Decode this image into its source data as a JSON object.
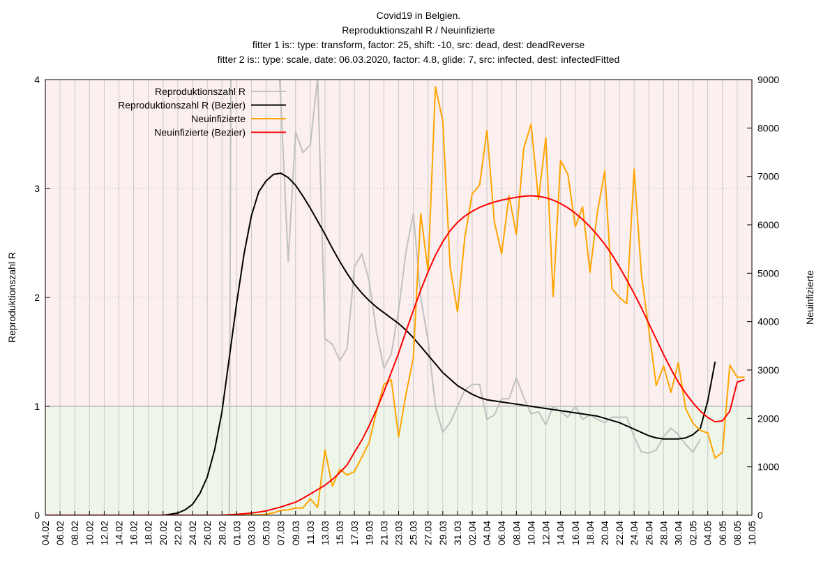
{
  "chart_data": {
    "type": "line",
    "title": [
      "Covid19 in Belgien.",
      "Reproduktionszahl R / Neuinfizierte",
      "fitter 1 is:: type: transform, factor: 25, shift: -10, src: dead, dest: deadReverse",
      "fitter 2 is:: type: scale, date: 06.03.2020, factor: 4.8, glide: 7, src: infected, dest: infectedFitted"
    ],
    "ylabel": "Reproduktionszahl R",
    "y2label": "Neuinfizierte",
    "categories": [
      "04.02",
      null,
      "06.02",
      null,
      "08.02",
      null,
      "10.02",
      null,
      "12.02",
      null,
      "14.02",
      null,
      "16.02",
      null,
      "18.02",
      null,
      "20.02",
      null,
      "22.02",
      null,
      "24.02",
      null,
      "26.02",
      null,
      "28.02",
      null,
      "01.03",
      null,
      "03.03",
      null,
      "05.03",
      null,
      "07.03",
      null,
      "09.03",
      null,
      "11.03",
      null,
      "13.03",
      null,
      "15.03",
      null,
      "17.03",
      null,
      "19.03",
      null,
      "21.03",
      null,
      "23.03",
      null,
      "25.03",
      null,
      "27.03",
      null,
      "29.03",
      null,
      "31.03",
      null,
      "02.04",
      null,
      "04.04",
      null,
      "06.04",
      null,
      "08.04",
      null,
      "10.04",
      null,
      "12.04",
      null,
      "14.04",
      null,
      "16.04",
      null,
      "18.04",
      null,
      "20.04",
      null,
      "22.04",
      null,
      "24.04",
      null,
      "26.04",
      null,
      "28.04",
      null,
      "30.04",
      null,
      "02.05",
      null,
      "04.05",
      null,
      "06.05",
      null,
      "08.05",
      null,
      "10.05"
    ],
    "ylim": [
      0,
      4
    ],
    "yticks": [
      0,
      1,
      2,
      3,
      4
    ],
    "y2lim": [
      0,
      9000
    ],
    "y2ticks": [
      0,
      1000,
      2000,
      3000,
      4000,
      5000,
      6000,
      7000,
      8000,
      9000
    ],
    "grid": true,
    "legend": "upper left",
    "zones": [
      {
        "ylim": [
          0,
          1
        ],
        "color": "#eef6ea"
      },
      {
        "ylim": [
          1,
          4
        ],
        "color": "#fcefef"
      }
    ],
    "series": [
      {
        "name": "Reproduktionszahl R",
        "color": "#c0c0c0",
        "values": [
          null,
          null,
          null,
          null,
          null,
          null,
          null,
          null,
          null,
          null,
          null,
          null,
          null,
          null,
          null,
          null,
          null,
          null,
          null,
          null,
          null,
          null,
          null,
          null,
          null,
          0,
          20,
          15,
          10,
          8,
          6,
          5,
          3.8,
          2.33,
          3.52,
          3.33,
          3.4,
          4.02,
          1.62,
          1.57,
          1.42,
          1.53,
          2.28,
          2.4,
          2.15,
          1.68,
          1.35,
          1.48,
          1.88,
          2.42,
          2.77,
          2.0,
          1.6,
          1.0,
          0.76,
          0.85,
          1.0,
          1.15,
          1.2,
          1.2,
          0.88,
          0.92,
          1.07,
          1.07,
          1.26,
          1.08,
          0.93,
          0.95,
          0.83,
          1.0,
          0.95,
          0.9,
          1.0,
          0.88,
          0.92,
          0.88,
          0.85,
          0.9,
          0.9,
          0.9,
          0.72,
          0.58,
          0.57,
          0.6,
          0.72,
          0.8,
          0.74,
          0.65,
          0.58,
          0.7,
          null,
          null,
          null,
          null,
          null,
          null,
          null
        ]
      },
      {
        "name": "Reproduktionszahl R (Bezier)",
        "color": "#000000",
        "values": [
          0,
          0,
          0,
          0,
          0,
          0,
          0,
          0,
          0,
          0,
          0,
          0,
          0,
          0,
          0,
          0,
          0,
          0.01,
          0.02,
          0.05,
          0.1,
          0.2,
          0.35,
          0.6,
          0.95,
          1.45,
          1.95,
          2.4,
          2.75,
          2.97,
          3.07,
          3.13,
          3.14,
          3.1,
          3.03,
          2.93,
          2.82,
          2.7,
          2.58,
          2.45,
          2.33,
          2.22,
          2.12,
          2.04,
          1.97,
          1.91,
          1.86,
          1.81,
          1.76,
          1.7,
          1.63,
          1.55,
          1.47,
          1.39,
          1.31,
          1.25,
          1.19,
          1.15,
          1.11,
          1.08,
          1.06,
          1.05,
          1.04,
          1.03,
          1.02,
          1.01,
          1.0,
          0.99,
          0.98,
          0.97,
          0.96,
          0.95,
          0.94,
          0.93,
          0.92,
          0.91,
          0.89,
          0.87,
          0.85,
          0.82,
          0.79,
          0.76,
          0.73,
          0.71,
          0.7,
          0.7,
          0.7,
          0.71,
          0.74,
          0.8,
          1.05,
          1.41,
          null,
          null,
          null,
          null,
          null
        ]
      },
      {
        "name": "Neuinfizierte",
        "color": "#ffa500",
        "axis": "y2",
        "values": [
          0,
          0,
          0,
          0,
          0,
          0,
          0,
          0,
          0,
          0,
          0,
          0,
          0,
          0,
          0,
          0,
          0,
          0,
          0,
          0,
          0,
          0,
          0,
          0,
          0,
          0,
          0,
          0,
          5,
          10,
          20,
          50,
          100,
          110,
          150,
          150,
          340,
          160,
          1350,
          600,
          950,
          830,
          900,
          1200,
          1500,
          2150,
          2700,
          2800,
          1620,
          2500,
          3250,
          6230,
          5050,
          8850,
          8150,
          5130,
          4200,
          5750,
          6640,
          6820,
          7950,
          6070,
          5400,
          6600,
          5800,
          7580,
          8080,
          6520,
          7800,
          4520,
          7330,
          7040,
          5960,
          6370,
          5020,
          6250,
          7110,
          4680,
          4500,
          4370,
          7150,
          4950,
          3830,
          2680,
          3080,
          2540,
          3150,
          2200,
          1900,
          1750,
          1700,
          1180,
          1300,
          3100,
          2850,
          2850,
          null
        ]
      },
      {
        "name": "Neuinfizierte (Bezier)",
        "color": "#ff0000",
        "axis": "y2",
        "values": [
          0,
          0,
          0,
          0,
          0,
          0,
          0,
          0,
          0,
          0,
          0,
          0,
          0,
          0,
          0,
          0,
          0,
          0,
          0,
          0,
          0,
          0,
          0,
          0,
          0,
          10,
          20,
          30,
          45,
          65,
          90,
          130,
          170,
          220,
          270,
          350,
          440,
          530,
          620,
          740,
          880,
          1040,
          1300,
          1550,
          1850,
          2180,
          2550,
          2950,
          3350,
          3800,
          4230,
          4650,
          5030,
          5370,
          5650,
          5880,
          6050,
          6180,
          6280,
          6360,
          6420,
          6470,
          6510,
          6540,
          6570,
          6590,
          6600,
          6590,
          6560,
          6510,
          6440,
          6350,
          6240,
          6110,
          5960,
          5790,
          5600,
          5380,
          5130,
          4860,
          4580,
          4280,
          3960,
          3640,
          3320,
          3020,
          2750,
          2520,
          2320,
          2150,
          2020,
          1930,
          1950,
          2150,
          2750,
          2800,
          null
        ]
      }
    ]
  }
}
